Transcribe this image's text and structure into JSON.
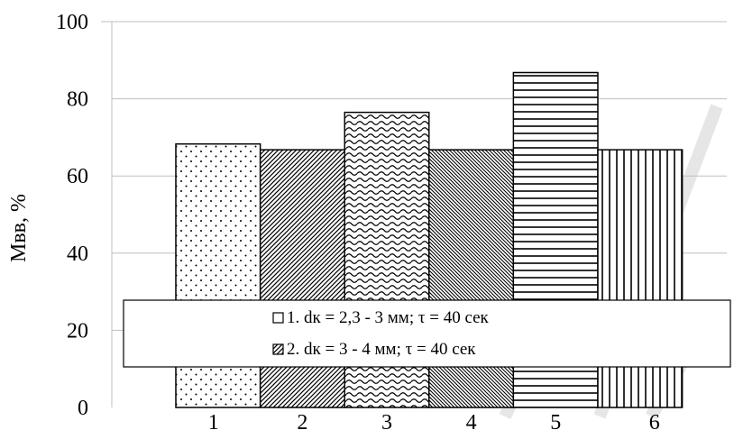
{
  "chart_data": {
    "type": "bar",
    "title": "",
    "xlabel": "",
    "ylabel": "Мвв, %",
    "ylim": [
      0,
      100
    ],
    "yticks": [
      0,
      20,
      40,
      60,
      80,
      100
    ],
    "grid": true,
    "legend_position": "bottom-center",
    "categories": [
      "1",
      "2",
      "3",
      "4",
      "5",
      "6"
    ],
    "values": [
      68.3,
      66.8,
      76.5,
      66.8,
      86.8,
      66.8
    ],
    "patterns": [
      "dots",
      "diagonal-lines",
      "waves",
      "fine-diagonal",
      "horizontal-lines",
      "vertical-lines"
    ],
    "legend": [
      {
        "label": "1. dк = 2,3 - 3 мм; τ = 40 сек",
        "pattern": "empty"
      },
      {
        "label": "2. dк = 3 - 4 мм;  τ = 40 сек",
        "pattern": "diagonal-lines"
      }
    ]
  },
  "colors": {
    "bar_stroke": "#000000",
    "grid": "#bfbfbf",
    "background": "#ffffff",
    "watermark": "#e6e6e6"
  }
}
